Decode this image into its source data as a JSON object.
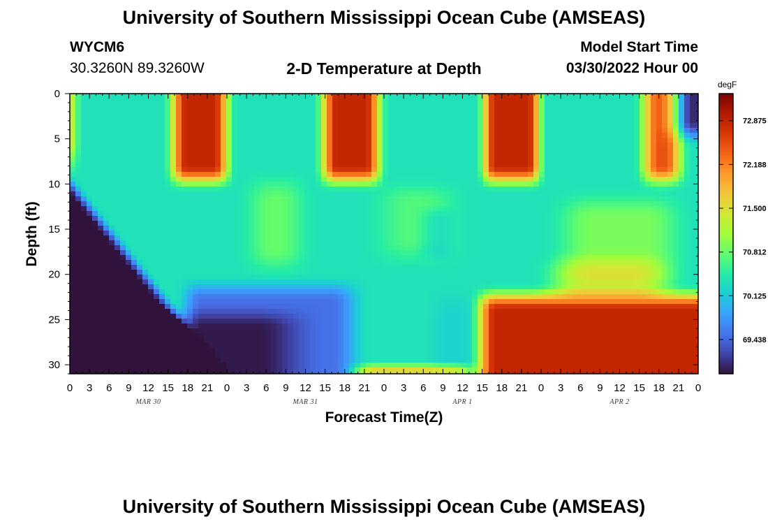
{
  "header": {
    "title": "University of Southern Mississippi Ocean Cube (AMSEAS)",
    "station_id": "WYCM6",
    "coords": "30.3260N  89.3260W",
    "plot_title": "2-D Temperature at Depth",
    "model_start_label": "Model Start Time",
    "model_start_value": "03/30/2022 Hour 00"
  },
  "footer": {
    "title": "University of Southern Mississippi Ocean Cube (AMSEAS)"
  },
  "chart_data": {
    "type": "heatmap",
    "xlabel": "Forecast Time(Z)",
    "ylabel": "Depth (ft)",
    "x_range_hours": [
      0,
      96
    ],
    "x_tick_labels": [
      "0",
      "3",
      "6",
      "9",
      "12",
      "15",
      "18",
      "21",
      "0",
      "3",
      "6",
      "9",
      "12",
      "15",
      "18",
      "21",
      "0",
      "3",
      "6",
      "9",
      "12",
      "15",
      "18",
      "21",
      "0",
      "3",
      "6",
      "9",
      "12",
      "15",
      "18",
      "21",
      "0"
    ],
    "date_labels": [
      {
        "label": "MAR 30",
        "hour": 12
      },
      {
        "label": "MAR 31",
        "hour": 36
      },
      {
        "label": "APR 1",
        "hour": 60
      },
      {
        "label": "APR 2",
        "hour": 84
      }
    ],
    "y_range_ft": [
      0,
      31
    ],
    "y_inverted": true,
    "y_ticks": [
      0,
      5,
      10,
      15,
      20,
      25,
      30
    ],
    "colorbar": {
      "unit": "degF",
      "range": [
        68.9,
        73.3
      ],
      "ticks": [
        "72.875",
        "72.188",
        "71.500",
        "70.812",
        "70.125",
        "69.438"
      ],
      "tick_values": [
        72.875,
        72.188,
        71.5,
        70.812,
        70.125,
        69.438
      ],
      "colors": [
        "#30123b",
        "#4145ab",
        "#4675ed",
        "#39a2fc",
        "#1bcfd4",
        "#24eca6",
        "#61fc6c",
        "#a4fc3b",
        "#d1e834",
        "#f3c63a",
        "#fe9b2d",
        "#f36315",
        "#d93806",
        "#b11901",
        "#7a0403"
      ]
    },
    "surface_warm_periods_hours": [
      [
        15,
        24
      ],
      [
        38,
        47
      ],
      [
        63,
        72
      ],
      [
        87,
        96
      ]
    ],
    "deep_warm_period_hours": [
      62,
      96
    ],
    "deep_cold_period_hours": [
      0,
      24
    ],
    "temperature_range_degF": [
      68.9,
      73.3
    ]
  }
}
